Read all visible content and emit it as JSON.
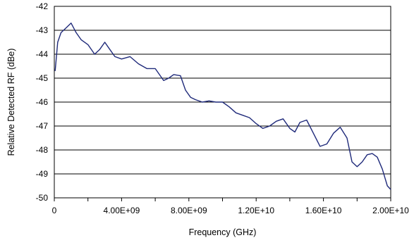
{
  "chart_data": {
    "type": "line",
    "title": "",
    "xlabel": "Frequency (GHz)",
    "ylabel": "Relative Detected RF (dBe)",
    "xlim": [
      0,
      20000000000
    ],
    "ylim": [
      -50,
      -42
    ],
    "x_ticks": [
      0,
      4000000000,
      8000000000,
      12000000000,
      16000000000,
      20000000000
    ],
    "x_tick_labels": [
      "0",
      "4.00E+09",
      "8.00E+09",
      "1.20E+10",
      "1.60E+10",
      "2.00E+10"
    ],
    "x_minor_ticks": [
      2000000000,
      6000000000,
      10000000000,
      14000000000,
      18000000000
    ],
    "y_ticks": [
      -50,
      -49,
      -48,
      -47,
      -46,
      -45,
      -44,
      -43,
      -42
    ],
    "y_tick_labels": [
      "-50",
      "-49",
      "-48",
      "-47",
      "-46",
      "-45",
      "-44",
      "-43",
      "-42"
    ],
    "grid": "horizontal",
    "legend": "none",
    "line_color": "#1f2a7a",
    "series": [
      {
        "x": [
          50000000,
          200000000,
          400000000,
          700000000,
          1000000000,
          1300000000,
          1600000000,
          2000000000,
          2400000000,
          2700000000,
          3000000000,
          3300000000,
          3600000000,
          4000000000,
          4500000000,
          5000000000,
          5500000000,
          6000000000,
          6500000000,
          6800000000,
          7100000000,
          7500000000,
          7800000000,
          8100000000,
          8400000000,
          8800000000,
          9200000000,
          9600000000,
          10000000000,
          10400000000,
          10800000000,
          11200000000,
          11600000000,
          12000000000,
          12400000000,
          12800000000,
          13200000000,
          13600000000,
          14000000000,
          14300000000,
          14600000000,
          15000000000,
          15400000000,
          15800000000,
          16200000000,
          16600000000,
          17000000000,
          17400000000,
          17700000000,
          18000000000,
          18300000000,
          18600000000,
          18900000000,
          19200000000,
          19500000000,
          19800000000,
          20000000000
        ],
        "y": [
          -44.7,
          -43.5,
          -43.1,
          -42.9,
          -42.7,
          -43.1,
          -43.4,
          -43.6,
          -44.0,
          -43.8,
          -43.5,
          -43.8,
          -44.1,
          -44.2,
          -44.1,
          -44.4,
          -44.6,
          -44.6,
          -45.1,
          -45.0,
          -44.85,
          -44.9,
          -45.5,
          -45.8,
          -45.9,
          -46.0,
          -45.95,
          -46.0,
          -46.0,
          -46.2,
          -46.45,
          -46.55,
          -46.65,
          -46.9,
          -47.1,
          -47.0,
          -46.8,
          -46.7,
          -47.1,
          -47.25,
          -46.85,
          -46.75,
          -47.3,
          -47.85,
          -47.75,
          -47.3,
          -47.05,
          -47.5,
          -48.5,
          -48.7,
          -48.5,
          -48.2,
          -48.15,
          -48.3,
          -48.8,
          -49.5,
          -49.65
        ]
      }
    ]
  }
}
